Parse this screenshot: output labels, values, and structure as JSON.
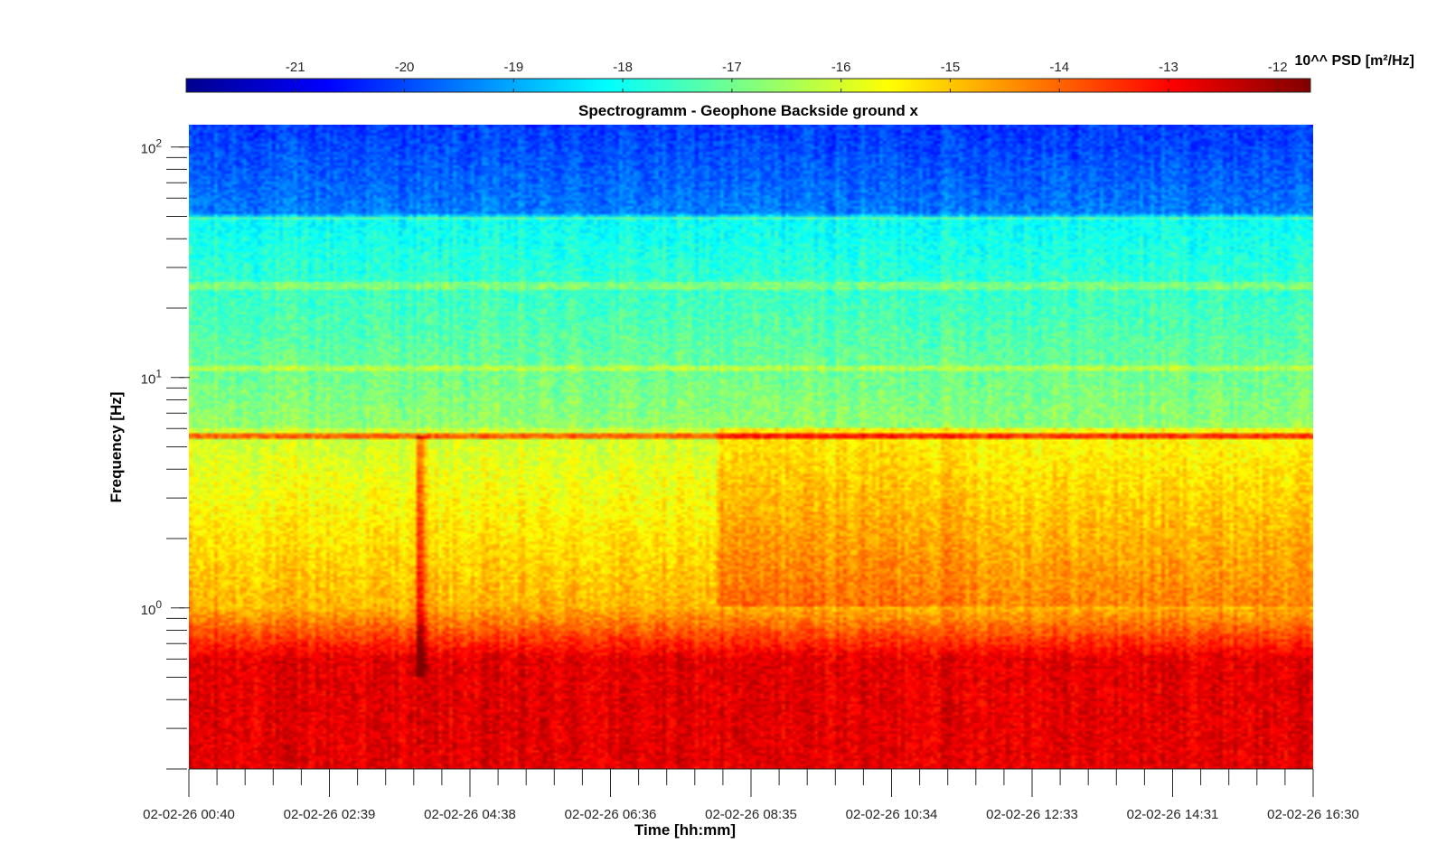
{
  "chart_data": {
    "type": "heatmap",
    "title": "Spectrogramm - Geophone Backside ground x",
    "xlabel": "Time [hh:mm]",
    "ylabel": "Frequency [Hz]",
    "x_tick_labels": [
      "02-02-26 00:40",
      "02-02-26 02:39",
      "02-02-26 04:38",
      "02-02-26 06:36",
      "02-02-26 08:35",
      "02-02-26 10:34",
      "02-02-26 12:33",
      "02-02-26 14:31",
      "02-02-26 16:30"
    ],
    "x_range": [
      "02-02-26 00:40",
      "02-02-26 16:30"
    ],
    "y_scale": "log",
    "y_range": [
      0.2,
      125
    ],
    "y_ticks": [
      1,
      10,
      100
    ],
    "y_tick_labels": [
      {
        "base": "10",
        "exp": "0"
      },
      {
        "base": "10",
        "exp": "1"
      },
      {
        "base": "10",
        "exp": "2"
      }
    ],
    "colorbar": {
      "label": "10^^ PSD [m²/Hz]",
      "range": [
        -22,
        -11.7
      ],
      "ticks": [
        -21,
        -20,
        -19,
        -18,
        -17,
        -16,
        -15,
        -14,
        -13,
        -12
      ],
      "tick_labels": [
        "-21",
        "-20",
        "-19",
        "-18",
        "-17",
        "-16",
        "-15",
        "-14",
        "-13",
        "-12"
      ],
      "colormap": "jet",
      "placement": "top"
    },
    "features": {
      "spectral_lines_hz": [
        5.6,
        11,
        25,
        50
      ],
      "transient_event_time": "02-02-26 03:58",
      "transient_event_freq_range_hz": [
        0.5,
        5.6
      ]
    },
    "grid": false
  }
}
